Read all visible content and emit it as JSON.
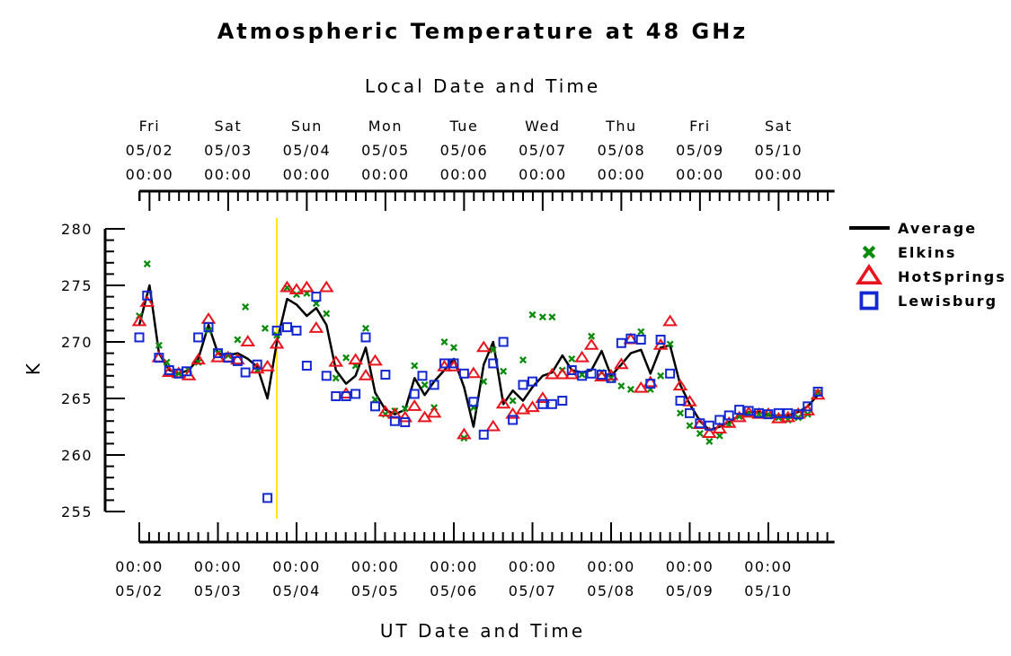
{
  "chart_data": {
    "type": "line",
    "title": "Atmospheric Temperature at 48 GHz",
    "top_axis_label": "Local Date and Time",
    "xlabel": "UT Date and Time",
    "ylabel": "K",
    "ylim": [
      254,
      281
    ],
    "xlim": [
      0,
      8.75
    ],
    "yticks": [
      280,
      275,
      270,
      265,
      260,
      255
    ],
    "grid": false,
    "legend_position": "right",
    "top_ticks": [
      {
        "x": 0.13,
        "day": "Fri",
        "date": "05/02",
        "time": "00:00"
      },
      {
        "x": 1.13,
        "day": "Sat",
        "date": "05/03",
        "time": "00:00"
      },
      {
        "x": 2.13,
        "day": "Sun",
        "date": "05/04",
        "time": "00:00"
      },
      {
        "x": 3.13,
        "day": "Mon",
        "date": "05/05",
        "time": "00:00"
      },
      {
        "x": 4.13,
        "day": "Tue",
        "date": "05/06",
        "time": "00:00"
      },
      {
        "x": 5.13,
        "day": "Wed",
        "date": "05/07",
        "time": "00:00"
      },
      {
        "x": 6.13,
        "day": "Thu",
        "date": "05/08",
        "time": "00:00"
      },
      {
        "x": 7.13,
        "day": "Fri",
        "date": "05/09",
        "time": "00:00"
      },
      {
        "x": 8.13,
        "day": "Sat",
        "date": "05/10",
        "time": "00:00"
      }
    ],
    "bottom_ticks": [
      {
        "x": 0,
        "time": "00:00",
        "date": "05/02"
      },
      {
        "x": 1,
        "time": "00:00",
        "date": "05/03"
      },
      {
        "x": 2,
        "time": "00:00",
        "date": "05/04"
      },
      {
        "x": 3,
        "time": "00:00",
        "date": "05/05"
      },
      {
        "x": 4,
        "time": "00:00",
        "date": "05/06"
      },
      {
        "x": 5,
        "time": "00:00",
        "date": "05/07"
      },
      {
        "x": 6,
        "time": "00:00",
        "date": "05/08"
      },
      {
        "x": 7,
        "time": "00:00",
        "date": "05/09"
      },
      {
        "x": 8,
        "time": "00:00",
        "date": "05/10"
      }
    ],
    "marker_line": {
      "x": 1.75,
      "color": "#ffe600"
    },
    "series": [
      {
        "name": "Average",
        "marker": "line",
        "color": "#000000",
        "points": [
          [
            0,
            271.5
          ],
          [
            0.13,
            275
          ],
          [
            0.25,
            269
          ],
          [
            0.38,
            267.5
          ],
          [
            0.5,
            267.2
          ],
          [
            0.63,
            267.5
          ],
          [
            0.75,
            268.5
          ],
          [
            0.88,
            271.5
          ],
          [
            1,
            269
          ],
          [
            1.13,
            268.8
          ],
          [
            1.25,
            269
          ],
          [
            1.38,
            268.5
          ],
          [
            1.5,
            267.8
          ],
          [
            1.63,
            265
          ],
          [
            1.75,
            270
          ],
          [
            1.88,
            273.8
          ],
          [
            2,
            273.3
          ],
          [
            2.13,
            272.3
          ],
          [
            2.25,
            273
          ],
          [
            2.38,
            271.5
          ],
          [
            2.5,
            267.5
          ],
          [
            2.63,
            266.3
          ],
          [
            2.75,
            267
          ],
          [
            2.88,
            269.5
          ],
          [
            3,
            265.5
          ],
          [
            3.13,
            264
          ],
          [
            3.25,
            263.6
          ],
          [
            3.38,
            264
          ],
          [
            3.5,
            266.8
          ],
          [
            3.63,
            265.3
          ],
          [
            3.75,
            266.5
          ],
          [
            3.88,
            267.5
          ],
          [
            4,
            268.5
          ],
          [
            4.13,
            266
          ],
          [
            4.25,
            262.5
          ],
          [
            4.38,
            268
          ],
          [
            4.5,
            270
          ],
          [
            4.63,
            264.5
          ],
          [
            4.75,
            265.7
          ],
          [
            4.88,
            264.8
          ],
          [
            5,
            266
          ],
          [
            5.13,
            267
          ],
          [
            5.25,
            267.3
          ],
          [
            5.38,
            268.8
          ],
          [
            5.5,
            267.5
          ],
          [
            5.63,
            267.3
          ],
          [
            5.75,
            267.5
          ],
          [
            5.88,
            269.2
          ],
          [
            6,
            267
          ],
          [
            6.13,
            268
          ],
          [
            6.25,
            269
          ],
          [
            6.38,
            269.3
          ],
          [
            6.5,
            267.2
          ],
          [
            6.63,
            269.5
          ],
          [
            6.75,
            269.7
          ],
          [
            6.88,
            266.2
          ],
          [
            7,
            264.5
          ],
          [
            7.13,
            263
          ],
          [
            7.25,
            262.2
          ],
          [
            7.38,
            262.5
          ],
          [
            7.5,
            262.9
          ],
          [
            7.63,
            263.5
          ],
          [
            7.75,
            263.8
          ],
          [
            7.88,
            263.8
          ],
          [
            8,
            263.5
          ],
          [
            8.13,
            263.5
          ],
          [
            8.25,
            263.5
          ],
          [
            8.38,
            263.8
          ],
          [
            8.5,
            264.3
          ],
          [
            8.63,
            265.3
          ]
        ]
      },
      {
        "name": "Elkins",
        "marker": "x",
        "color": "#0a8a0a",
        "points": [
          [
            0,
            272.3
          ],
          [
            0.1,
            276.9
          ],
          [
            0.25,
            269.7
          ],
          [
            0.35,
            268.2
          ],
          [
            0.5,
            267.2
          ],
          [
            0.63,
            267.5
          ],
          [
            0.75,
            268.2
          ],
          [
            0.88,
            271
          ],
          [
            1,
            269
          ],
          [
            1.13,
            268.8
          ],
          [
            1.25,
            270.2
          ],
          [
            1.35,
            273.1
          ],
          [
            1.5,
            267.5
          ],
          [
            1.6,
            271.2
          ],
          [
            1.75,
            270.6
          ],
          [
            1.88,
            274.8
          ],
          [
            2,
            274.2
          ],
          [
            2.13,
            274.3
          ],
          [
            2.25,
            273.4
          ],
          [
            2.38,
            272.5
          ],
          [
            2.5,
            266.8
          ],
          [
            2.63,
            268.6
          ],
          [
            2.75,
            267.9
          ],
          [
            2.88,
            271.2
          ],
          [
            3,
            264.9
          ],
          [
            3.13,
            263.6
          ],
          [
            3.25,
            263.9
          ],
          [
            3.38,
            264.1
          ],
          [
            3.5,
            267.9
          ],
          [
            3.63,
            266.2
          ],
          [
            3.75,
            264.2
          ],
          [
            3.88,
            270
          ],
          [
            4,
            269.5
          ],
          [
            4.13,
            261.5
          ],
          [
            4.25,
            264.2
          ],
          [
            4.38,
            266.5
          ],
          [
            4.5,
            269.3
          ],
          [
            4.63,
            267.4
          ],
          [
            4.75,
            264.8
          ],
          [
            4.88,
            268.4
          ],
          [
            5,
            272.4
          ],
          [
            5.13,
            272.2
          ],
          [
            5.25,
            272.2
          ],
          [
            5.38,
            267.5
          ],
          [
            5.5,
            268.5
          ],
          [
            5.63,
            267.1
          ],
          [
            5.75,
            270.5
          ],
          [
            5.88,
            267.3
          ],
          [
            6,
            266.8
          ],
          [
            6.13,
            266.1
          ],
          [
            6.25,
            265.8
          ],
          [
            6.38,
            270.9
          ],
          [
            6.5,
            265.8
          ],
          [
            6.63,
            267
          ],
          [
            6.75,
            269.8
          ],
          [
            6.88,
            263.7
          ],
          [
            7,
            262.6
          ],
          [
            7.13,
            261.9
          ],
          [
            7.25,
            261.2
          ],
          [
            7.38,
            261.7
          ],
          [
            7.5,
            262.7
          ],
          [
            7.63,
            263.4
          ],
          [
            7.75,
            263.7
          ],
          [
            7.88,
            263.6
          ],
          [
            8,
            263.6
          ],
          [
            8.13,
            263.3
          ],
          [
            8.25,
            263.1
          ],
          [
            8.38,
            263.3
          ],
          [
            8.5,
            263.6
          ],
          [
            8.63,
            265.5
          ]
        ]
      },
      {
        "name": "HotSprings",
        "marker": "triangle",
        "color": "#e8141e",
        "points": [
          [
            0,
            271.8
          ],
          [
            0.1,
            273.5
          ],
          [
            0.25,
            268.6
          ],
          [
            0.38,
            267.3
          ],
          [
            0.5,
            267.2
          ],
          [
            0.63,
            267
          ],
          [
            0.75,
            268.4
          ],
          [
            0.88,
            272
          ],
          [
            1,
            268.6
          ],
          [
            1.13,
            268.6
          ],
          [
            1.25,
            268.4
          ],
          [
            1.38,
            270
          ],
          [
            1.5,
            267.6
          ],
          [
            1.63,
            267.8
          ],
          [
            1.75,
            269.8
          ],
          [
            1.88,
            274.8
          ],
          [
            2,
            274.6
          ],
          [
            2.13,
            274.8
          ],
          [
            2.25,
            271.2
          ],
          [
            2.38,
            274.8
          ],
          [
            2.5,
            268.2
          ],
          [
            2.63,
            265.4
          ],
          [
            2.75,
            268.4
          ],
          [
            2.88,
            267
          ],
          [
            3,
            268.3
          ],
          [
            3.13,
            263.8
          ],
          [
            3.25,
            263.6
          ],
          [
            3.38,
            263.3
          ],
          [
            3.5,
            264.3
          ],
          [
            3.63,
            263.3
          ],
          [
            3.75,
            263.7
          ],
          [
            3.88,
            267.8
          ],
          [
            4,
            267.8
          ],
          [
            4.13,
            261.8
          ],
          [
            4.25,
            267.2
          ],
          [
            4.38,
            269.5
          ],
          [
            4.5,
            262.5
          ],
          [
            4.63,
            264.5
          ],
          [
            4.75,
            263.6
          ],
          [
            4.88,
            264
          ],
          [
            5,
            264.2
          ],
          [
            5.13,
            265
          ],
          [
            5.25,
            267.1
          ],
          [
            5.38,
            267.1
          ],
          [
            5.5,
            267.1
          ],
          [
            5.63,
            268.6
          ],
          [
            5.75,
            269.7
          ],
          [
            5.88,
            266.9
          ],
          [
            6,
            267
          ],
          [
            6.13,
            268
          ],
          [
            6.25,
            270.2
          ],
          [
            6.38,
            265.9
          ],
          [
            6.5,
            266.4
          ],
          [
            6.63,
            269.7
          ],
          [
            6.75,
            271.8
          ],
          [
            6.88,
            266.1
          ],
          [
            7,
            264.7
          ],
          [
            7.13,
            262.7
          ],
          [
            7.25,
            261.9
          ],
          [
            7.38,
            262.3
          ],
          [
            7.5,
            262.8
          ],
          [
            7.63,
            263.3
          ],
          [
            7.75,
            263.7
          ],
          [
            7.88,
            263.6
          ],
          [
            8,
            263.6
          ],
          [
            8.13,
            263.2
          ],
          [
            8.25,
            263.3
          ],
          [
            8.38,
            263.6
          ],
          [
            8.5,
            263.9
          ],
          [
            8.63,
            265.3
          ]
        ]
      },
      {
        "name": "Lewisburg",
        "marker": "square",
        "color": "#1428d2",
        "points": [
          [
            0,
            270.4
          ],
          [
            0.1,
            274.1
          ],
          [
            0.25,
            268.6
          ],
          [
            0.38,
            267.5
          ],
          [
            0.5,
            267.2
          ],
          [
            0.6,
            267.4
          ],
          [
            0.75,
            270.4
          ],
          [
            0.88,
            271.3
          ],
          [
            1,
            269
          ],
          [
            1.13,
            268.6
          ],
          [
            1.25,
            268.3
          ],
          [
            1.35,
            267.3
          ],
          [
            1.5,
            268
          ],
          [
            1.63,
            256.2
          ],
          [
            1.75,
            271
          ],
          [
            1.88,
            271.3
          ],
          [
            2,
            271
          ],
          [
            2.13,
            267.9
          ],
          [
            2.25,
            274
          ],
          [
            2.38,
            267
          ],
          [
            2.5,
            265.2
          ],
          [
            2.63,
            265.2
          ],
          [
            2.75,
            265.4
          ],
          [
            2.88,
            270.4
          ],
          [
            3,
            264.3
          ],
          [
            3.13,
            267.1
          ],
          [
            3.25,
            263
          ],
          [
            3.38,
            262.9
          ],
          [
            3.5,
            265.4
          ],
          [
            3.6,
            267
          ],
          [
            3.75,
            266.2
          ],
          [
            3.88,
            268.1
          ],
          [
            4,
            268.1
          ],
          [
            4.13,
            267.2
          ],
          [
            4.25,
            264.7
          ],
          [
            4.38,
            261.8
          ],
          [
            4.5,
            268.1
          ],
          [
            4.63,
            270
          ],
          [
            4.75,
            263.1
          ],
          [
            4.88,
            266.2
          ],
          [
            5,
            266.5
          ],
          [
            5.13,
            264.5
          ],
          [
            5.25,
            264.5
          ],
          [
            5.38,
            264.8
          ],
          [
            5.5,
            267.5
          ],
          [
            5.63,
            267
          ],
          [
            5.75,
            267.2
          ],
          [
            5.88,
            267.1
          ],
          [
            6,
            266.8
          ],
          [
            6.13,
            269.9
          ],
          [
            6.25,
            270.3
          ],
          [
            6.38,
            270.2
          ],
          [
            6.5,
            266.3
          ],
          [
            6.63,
            270.2
          ],
          [
            6.75,
            267.2
          ],
          [
            6.88,
            264.8
          ],
          [
            7,
            263.7
          ],
          [
            7.13,
            262.8
          ],
          [
            7.25,
            262.6
          ],
          [
            7.38,
            263.1
          ],
          [
            7.5,
            263.5
          ],
          [
            7.63,
            264
          ],
          [
            7.75,
            263.9
          ],
          [
            7.88,
            263.7
          ],
          [
            8,
            263.6
          ],
          [
            8.13,
            263.7
          ],
          [
            8.25,
            263.7
          ],
          [
            8.38,
            263.6
          ],
          [
            8.5,
            264.3
          ],
          [
            8.63,
            265.6
          ]
        ]
      }
    ]
  }
}
